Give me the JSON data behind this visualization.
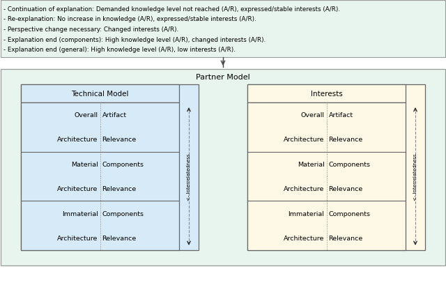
{
  "top_text_lines": [
    "- Continuation of explanation: Demanded knowledge level not reached (A/R), expressed/stable interests (A/R).",
    "- Re-explanation: No increase in knowledge (A/R), expressed/stable interests (A/R).",
    "- Perspective change necessary: Changed interests (A/R).",
    "- Explanation end (components): High knowledge level (A/R), changed interests (A/R).",
    "- Explanation end (general): High knowledge level (A/R), low interests (A/R)."
  ],
  "top_box_bg": "#e8f4ee",
  "top_box_border": "#999999",
  "partner_model_bg": "#e8f4ee",
  "partner_model_border": "#999999",
  "partner_model_label": "Partner Model",
  "tech_header_bg": "#d6eaf8",
  "tech_header_label": "Technical Model",
  "int_header_bg": "#fef9e7",
  "int_header_label": "Interests",
  "tech_body_bg": "#d6eaf8",
  "int_body_bg": "#fef9e7",
  "cell_border": "#666666",
  "dashed_color": "#888888",
  "arrow_color": "#333333",
  "interrelatedness_label": "<- Interrelatedness",
  "tm_rows": [
    [
      "Overall",
      "Artifact"
    ],
    [
      "Architecture",
      "Relevance"
    ],
    [
      "Material",
      "Components"
    ],
    [
      "Architecture",
      "Relevance"
    ],
    [
      "Immaterial",
      "Components"
    ],
    [
      "Architecture",
      "Relevance"
    ]
  ],
  "fig_bg": "#ffffff"
}
